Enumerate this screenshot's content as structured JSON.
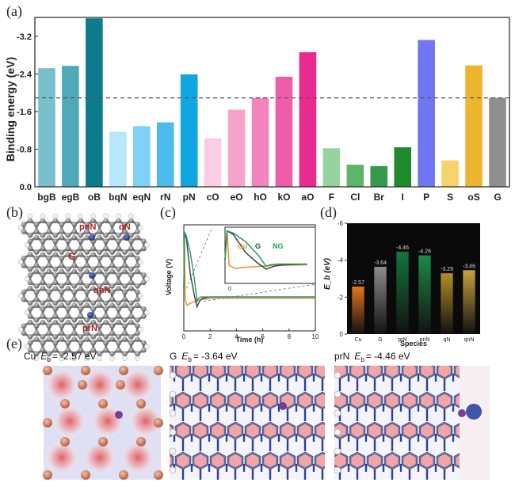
{
  "panels": {
    "a": "(a)",
    "b": "(b)",
    "c": "(c)",
    "d": "(d)",
    "e": "(e)"
  },
  "chart_data": [
    {
      "type": "bar",
      "panel": "a",
      "ylabel": "Binding energy (eV)",
      "ylim": [
        0,
        -3.6
      ],
      "yticks": [
        "0.0",
        "-0.8",
        "-1.6",
        "-2.4",
        "-3.2"
      ],
      "ytick_values": [
        0,
        -0.8,
        -1.6,
        -2.4,
        -3.2
      ],
      "categories": [
        "bgB",
        "egB",
        "oB",
        "bqN",
        "eqN",
        "rN",
        "pN",
        "cO",
        "eO",
        "hO",
        "kO",
        "aO",
        "F",
        "Cl",
        "Br",
        "I",
        "P",
        "S",
        "oS",
        "G"
      ],
      "values": [
        -2.52,
        -2.57,
        -3.58,
        -1.17,
        -1.29,
        -1.37,
        -2.39,
        -1.03,
        -1.64,
        -1.89,
        -2.34,
        -2.86,
        -0.82,
        -0.47,
        -0.44,
        -0.84,
        -3.12,
        -0.56,
        -2.58,
        -1.89
      ],
      "colors": [
        "#78c0cc",
        "#4eaab8",
        "#0c7b8c",
        "#b7e7fb",
        "#7fd2f5",
        "#4cbcec",
        "#10a6e2",
        "#fbcde5",
        "#f6a3cc",
        "#f283bc",
        "#ee5da8",
        "#ea2b8e",
        "#97d39e",
        "#5fb56a",
        "#35994b",
        "#1f8b2c",
        "#7075f2",
        "#f8d26a",
        "#f0b530",
        "#8f8f8f"
      ],
      "reference_line": -1.89,
      "grid": false
    },
    {
      "type": "line",
      "panel": "c",
      "ylabel": "Voltage (V)",
      "xlabel": "Time (h)",
      "xlim": [
        0,
        10
      ],
      "ylim": [
        -0.25,
        0.5
      ],
      "xticks": [
        "0",
        "2",
        "4",
        "6",
        "8",
        "10"
      ],
      "tick_values": [
        0,
        2,
        4,
        6,
        8,
        10
      ],
      "series": [
        {
          "name": "Cu",
          "color": "#e8902a",
          "x": [
            0,
            0.05,
            0.1,
            0.25,
            0.4,
            0.6,
            0.9,
            1.2,
            2,
            4,
            6,
            8,
            10
          ],
          "y": [
            0.05,
            0.45,
            -0.03,
            -0.07,
            -0.06,
            -0.05,
            -0.04,
            -0.03,
            -0.02,
            -0.02,
            -0.02,
            -0.02,
            -0.02
          ]
        },
        {
          "name": "G",
          "color": "#2f4457",
          "x": [
            0,
            0.05,
            0.2,
            0.5,
            0.8,
            1,
            1.2,
            1.4,
            2,
            4,
            6,
            8,
            10
          ],
          "y": [
            0.05,
            0.45,
            0.4,
            0.15,
            0,
            -0.08,
            -0.04,
            -0.02,
            -0.01,
            -0.01,
            -0.01,
            -0.01,
            -0.01
          ]
        },
        {
          "name": "NG",
          "color": "#2a9a5a",
          "x": [
            0,
            0.05,
            0.2,
            0.5,
            0.8,
            1,
            1.1,
            1.3,
            2,
            4,
            6,
            8,
            10
          ],
          "y": [
            0.05,
            0.45,
            0.42,
            0.3,
            0.12,
            -0.04,
            -0.02,
            -0.01,
            -0.01,
            -0.01,
            -0.01,
            -0.01,
            -0.01
          ]
        }
      ],
      "inset_legend": [
        "Cu",
        "G",
        "NG"
      ]
    },
    {
      "type": "bar",
      "panel": "d",
      "ylabel": "E_b (eV)",
      "xlabel": "Species",
      "ylim": [
        0,
        -6
      ],
      "yticks": [
        "0",
        "-2",
        "-4",
        "-6"
      ],
      "ytick_values": [
        0,
        -2,
        -4,
        -6
      ],
      "categories": [
        "Cu",
        "G",
        "prN",
        "pnN",
        "qN",
        "qnN"
      ],
      "values": [
        -2.57,
        -3.64,
        -4.46,
        -4.26,
        -3.29,
        -3.46
      ],
      "value_labels": [
        "-2.57",
        "-3.64",
        "-4.46",
        "-4.26",
        "-3.29",
        "-3.46"
      ],
      "colors": [
        "#e2761b",
        "#8c8c8c",
        "#16743e",
        "#1c8a47",
        "#b58d24",
        "#c7a23a"
      ],
      "grid": false
    }
  ],
  "structure_b": {
    "labels": [
      {
        "text": "pnN",
        "color": "#b02020"
      },
      {
        "text": "qN",
        "color": "#b02020"
      },
      {
        "text": "G",
        "color": "#b02020"
      },
      {
        "text": "qnN",
        "color": "#b02020"
      },
      {
        "text": "prN",
        "color": "#b02020"
      }
    ]
  },
  "maps_e": [
    {
      "prefix": "Cu",
      "value": "= -2.57 eV"
    },
    {
      "prefix": "G",
      "value": "= -3.64 eV"
    },
    {
      "prefix": "prN",
      "value": "= -4.46 eV"
    }
  ]
}
